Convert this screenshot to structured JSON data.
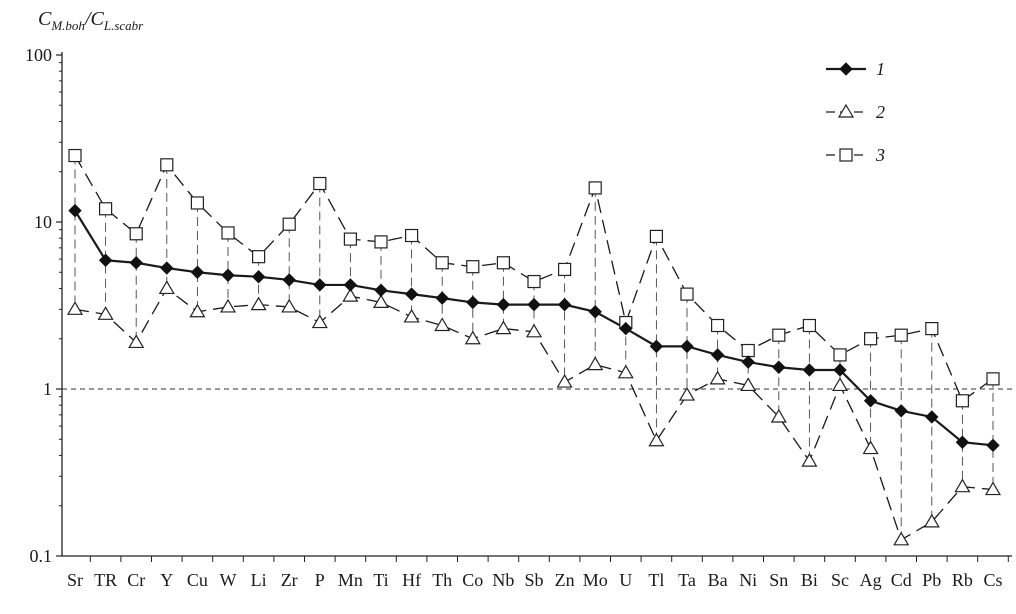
{
  "chart_data": {
    "type": "line",
    "ylabel": {
      "num_base": "C",
      "num_sub": "M.boh",
      "sep": "/",
      "den_base": "C",
      "den_sub": "L.scabr"
    },
    "y_scale": "log",
    "ylim": [
      0.1,
      100
    ],
    "y_ticks": [
      0.1,
      1,
      10,
      100
    ],
    "y_tick_labels": [
      "0.1",
      "1",
      "10",
      "100"
    ],
    "reference_line": 1,
    "categories": [
      "Sr",
      "TR",
      "Cr",
      "Y",
      "Cu",
      "W",
      "Li",
      "Zr",
      "P",
      "Mn",
      "Ti",
      "Hf",
      "Th",
      "Co",
      "Nb",
      "Sb",
      "Zn",
      "Mo",
      "U",
      "Tl",
      "Ta",
      "Ba",
      "Ni",
      "Sn",
      "Bi",
      "Sc",
      "Ag",
      "Cd",
      "Pb",
      "Rb",
      "Cs"
    ],
    "series": [
      {
        "name": "1",
        "marker": "diamond",
        "line": "solid",
        "values": [
          11.7,
          5.9,
          5.7,
          5.3,
          5.0,
          4.8,
          4.7,
          4.5,
          4.2,
          4.2,
          3.9,
          3.7,
          3.5,
          3.3,
          3.2,
          3.2,
          3.2,
          2.9,
          2.3,
          1.8,
          1.8,
          1.6,
          1.45,
          1.35,
          1.3,
          1.3,
          0.85,
          0.74,
          0.68,
          0.48,
          0.46
        ]
      },
      {
        "name": "2",
        "marker": "triangle",
        "line": "dashed",
        "values": [
          3.0,
          2.8,
          1.9,
          4.0,
          2.9,
          3.1,
          3.2,
          3.1,
          2.5,
          3.6,
          3.3,
          2.7,
          2.4,
          2.0,
          2.3,
          2.2,
          1.1,
          1.4,
          1.25,
          0.49,
          0.92,
          1.15,
          1.05,
          0.68,
          0.37,
          1.05,
          0.44,
          0.125,
          0.16,
          0.26,
          0.25
        ]
      },
      {
        "name": "3",
        "marker": "square",
        "line": "dashed",
        "values": [
          25,
          12,
          8.5,
          22,
          13,
          8.6,
          6.2,
          9.7,
          17,
          7.9,
          7.6,
          8.3,
          5.7,
          5.4,
          5.7,
          4.4,
          5.2,
          16,
          2.5,
          8.2,
          3.7,
          2.4,
          1.7,
          2.1,
          2.4,
          1.6,
          2.0,
          2.1,
          2.3,
          0.85,
          1.15
        ]
      }
    ],
    "legend": {
      "position": "top-right"
    }
  }
}
